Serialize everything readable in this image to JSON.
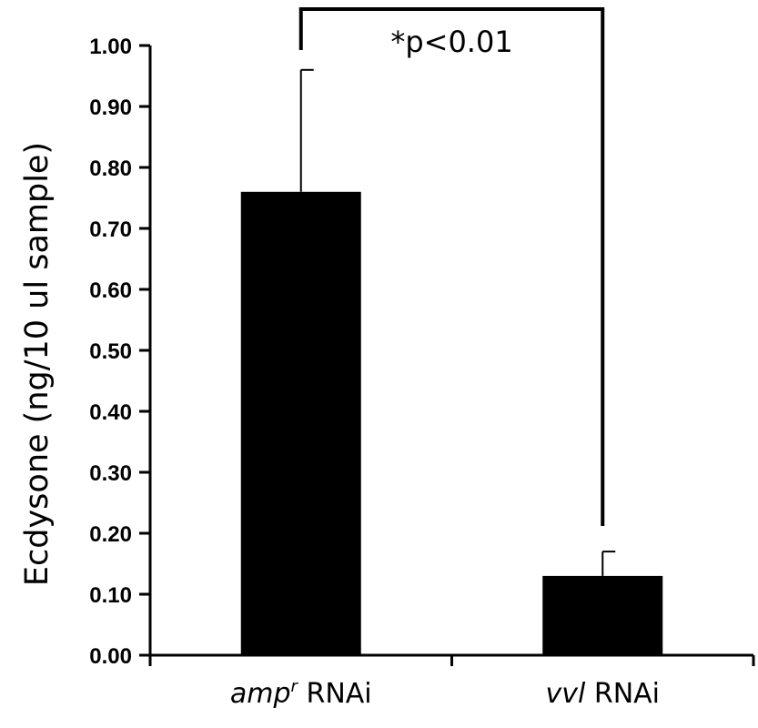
{
  "chart_data": {
    "type": "bar",
    "categories": [
      {
        "italic": "amp",
        "superscript": "r",
        "suffix": " RNAi"
      },
      {
        "italic": "vvl",
        "superscript": "",
        "suffix": " RNAi"
      }
    ],
    "values": [
      0.76,
      0.13
    ],
    "error_upper": [
      0.96,
      0.17
    ],
    "ylabel": "Ecdysone (ng/10 ul sample)",
    "xlabel": "",
    "ylim": [
      0,
      1.0
    ],
    "yticks": [
      "0.00",
      "0.10",
      "0.20",
      "0.30",
      "0.40",
      "0.50",
      "0.60",
      "0.70",
      "0.80",
      "0.90",
      "1.00"
    ],
    "significance": {
      "label": "*p<0.01",
      "between": [
        0,
        1
      ]
    },
    "bar_color": "#000000",
    "grid": false,
    "legend": "none"
  }
}
